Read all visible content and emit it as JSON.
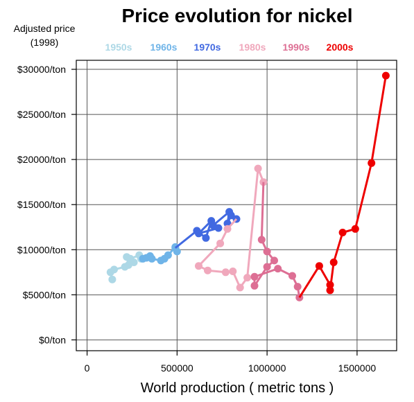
{
  "chart_data": {
    "type": "line",
    "title": "Price evolution for nickel",
    "ylabel_lines": [
      "Adjusted price",
      "(1998)"
    ],
    "xlabel": "World production ( metric tons )",
    "xlim": [
      -60000,
      1720000
    ],
    "ylim": [
      -1200,
      31000
    ],
    "x_ticks": [
      {
        "value": 0,
        "label": "0"
      },
      {
        "value": 500000,
        "label": "500000"
      },
      {
        "value": 1000000,
        "label": "1000000"
      },
      {
        "value": 1500000,
        "label": "1500000"
      }
    ],
    "y_ticks": [
      {
        "value": 0,
        "label": "$0/ton"
      },
      {
        "value": 5000,
        "label": "$5000/ton"
      },
      {
        "value": 10000,
        "label": "$10000/ton"
      },
      {
        "value": 15000,
        "label": "$15000/ton"
      },
      {
        "value": 20000,
        "label": "$20000/ton"
      },
      {
        "value": 25000,
        "label": "$25000/ton"
      },
      {
        "value": 30000,
        "label": "$30000/ton"
      }
    ],
    "grid": true,
    "legend_position": "top",
    "series": [
      {
        "name": "1950s",
        "color": "#add8e6",
        "points": [
          [
            140000,
            6700
          ],
          [
            130000,
            7500
          ],
          [
            150000,
            7800
          ],
          [
            210000,
            8100
          ],
          [
            230000,
            8300
          ],
          [
            220000,
            9200
          ],
          [
            260000,
            8600
          ],
          [
            240000,
            9000
          ],
          [
            290000,
            9400
          ],
          [
            300000,
            9000
          ]
        ]
      },
      {
        "name": "1960s",
        "color": "#6fb4e8",
        "points": [
          [
            310000,
            9000
          ],
          [
            330000,
            9100
          ],
          [
            350000,
            9300
          ],
          [
            360000,
            9000
          ],
          [
            410000,
            8800
          ],
          [
            430000,
            9000
          ],
          [
            450000,
            9400
          ],
          [
            490000,
            10300
          ],
          [
            500000,
            9800
          ],
          [
            490000,
            10200
          ]
        ]
      },
      {
        "name": "1970s",
        "color": "#4169e1",
        "points": [
          [
            610000,
            12100
          ],
          [
            660000,
            11300
          ],
          [
            690000,
            13200
          ],
          [
            620000,
            11800
          ],
          [
            730000,
            12400
          ],
          [
            700000,
            12700
          ],
          [
            790000,
            14200
          ],
          [
            780000,
            12900
          ],
          [
            800000,
            13800
          ],
          [
            830000,
            13400
          ]
        ]
      },
      {
        "name": "1980s",
        "color": "#f0a8bc",
        "points": [
          [
            780000,
            12300
          ],
          [
            740000,
            10700
          ],
          [
            620000,
            8200
          ],
          [
            670000,
            7700
          ],
          [
            770000,
            7500
          ],
          [
            810000,
            7600
          ],
          [
            850000,
            5800
          ],
          [
            890000,
            6900
          ],
          [
            950000,
            19000
          ],
          [
            980000,
            17500
          ]
        ]
      },
      {
        "name": "1990s",
        "color": "#dd6f94",
        "points": [
          [
            970000,
            11100
          ],
          [
            1000000,
            9800
          ],
          [
            1040000,
            8800
          ],
          [
            1000000,
            8100
          ],
          [
            930000,
            6000
          ],
          [
            930000,
            7000
          ],
          [
            1060000,
            7900
          ],
          [
            1140000,
            7100
          ],
          [
            1170000,
            5900
          ],
          [
            1180000,
            4700
          ]
        ]
      },
      {
        "name": "2000s",
        "color": "#ee0000",
        "points": [
          [
            1290000,
            8200
          ],
          [
            1350000,
            6100
          ],
          [
            1350000,
            5500
          ],
          [
            1370000,
            8600
          ],
          [
            1420000,
            11900
          ],
          [
            1490000,
            12300
          ],
          [
            1580000,
            19600
          ],
          [
            1660000,
            29300
          ]
        ]
      }
    ]
  }
}
